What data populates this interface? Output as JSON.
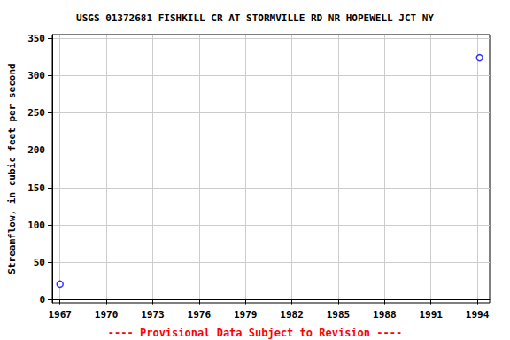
{
  "chart_data": {
    "type": "scatter",
    "title": "USGS 01372681 FISHKILL CR AT STORMVILLE RD NR HOPEWELL JCT NY",
    "y_label": "Streamflow, in cubic feet per second",
    "annotations": [
      "---- Provisional Data Subject to Revision ----"
    ],
    "x": [
      1967.0,
      1994.15
    ],
    "values": [
      21,
      324
    ],
    "color": "#0000ff",
    "marker": "hollow_circle",
    "xlim": [
      1966.5,
      1994.8
    ],
    "xticks": [
      1967,
      1970,
      1973,
      1976,
      1979,
      1982,
      1985,
      1988,
      1991,
      1994
    ],
    "ylim": [
      -4,
      355
    ],
    "yticks": [
      0,
      50,
      100,
      150,
      200,
      250,
      300,
      350
    ],
    "grid": true
  }
}
